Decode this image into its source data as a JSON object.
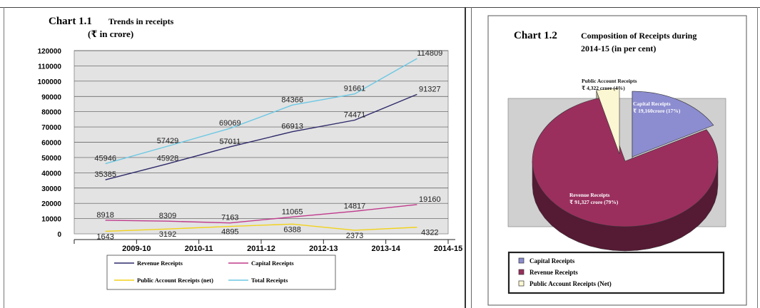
{
  "charts": [
    {
      "label": "Chart 1.1",
      "title": "Trends in receipts",
      "subtitle": "(₹ in crore)"
    },
    {
      "label": "Chart 1.2",
      "title_line1": "Composition of Receipts during",
      "title_line2": "2014-15 (in per cent)"
    }
  ],
  "chart_data": [
    {
      "type": "line",
      "categories": [
        "2009-10",
        "2010-11",
        "2011-12",
        "2012-13",
        "2013-14",
        "2014-15"
      ],
      "ylim": [
        0,
        120000
      ],
      "yticks": [
        0,
        10000,
        20000,
        30000,
        40000,
        50000,
        60000,
        70000,
        80000,
        90000,
        100000,
        110000,
        120000
      ],
      "grid": true,
      "legend_position": "bottom",
      "series": [
        {
          "name": "Revenue Receipts",
          "color": "#2e2a6a",
          "values": [
            35385,
            45928,
            57011,
            66913,
            74471,
            91327
          ]
        },
        {
          "name": "Capital Receipts",
          "color": "#c03a8c",
          "values": [
            8918,
            8309,
            7163,
            11065,
            14817,
            19160
          ]
        },
        {
          "name": "Public Account Receipts (net)",
          "color": "#f2d21a",
          "values": [
            1643,
            3192,
            4895,
            6388,
            2373,
            4322
          ]
        },
        {
          "name": "Total Receipts",
          "color": "#6cc8e4",
          "values": [
            45946,
            57429,
            69069,
            84366,
            91661,
            114809
          ]
        }
      ]
    },
    {
      "type": "pie",
      "legend_position": "bottom",
      "slices": [
        {
          "name": "Capital Receipts",
          "label_line1": "Capital Receipts",
          "label_line2": "₹ 19,160crore (17%)",
          "value": 17,
          "color": "#8c8cd0"
        },
        {
          "name": "Revenue Receipts",
          "label_line1": "Revenue Receipts",
          "label_line2": "₹ 91,327 crore (79%)",
          "value": 79,
          "color": "#9a2f5e"
        },
        {
          "name": "Public Account Receipts (Net)",
          "label_line1": "Public Account Receipts",
          "label_line2": "₹ 4,322 crore (4%)",
          "value": 4,
          "color": "#fbf7d2"
        }
      ]
    }
  ]
}
